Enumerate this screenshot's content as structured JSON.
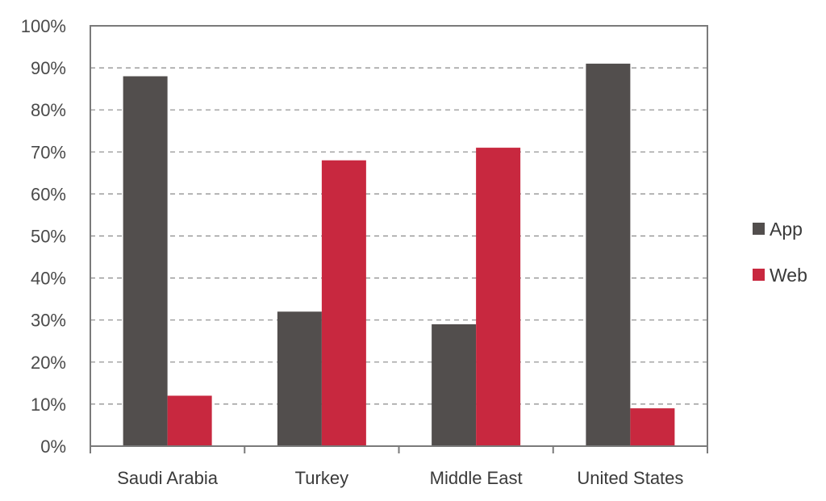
{
  "chart_data": {
    "type": "bar",
    "categories": [
      "Saudi Arabia",
      "Turkey",
      "Middle East",
      "United States"
    ],
    "series": [
      {
        "name": "App",
        "values": [
          88,
          32,
          29,
          91
        ],
        "color": "#524e4d"
      },
      {
        "name": "Web",
        "values": [
          12,
          68,
          71,
          9
        ],
        "color": "#c8283f"
      }
    ],
    "ylim": [
      0,
      100
    ],
    "yticks": [
      "0%",
      "10%",
      "20%",
      "30%",
      "40%",
      "50%",
      "60%",
      "70%",
      "80%",
      "90%",
      "100%"
    ],
    "grid": true,
    "legend_position": "right",
    "title": "",
    "xlabel": "",
    "ylabel": ""
  }
}
